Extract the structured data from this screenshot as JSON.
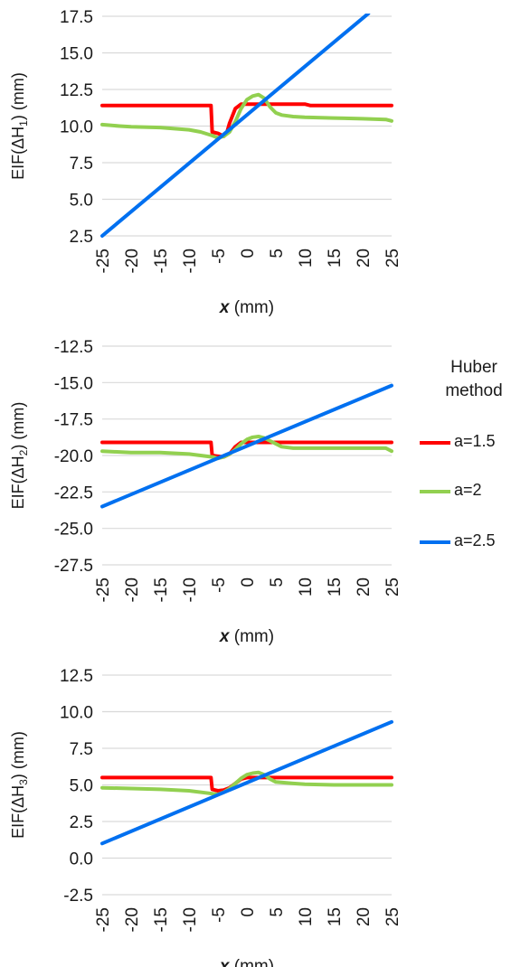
{
  "chart_data": [
    {
      "type": "line",
      "ylabel_prefix": "EIF(ΔH",
      "ylabel_subscript": "1",
      "ylabel_suffix": ") (mm)",
      "xlabel_var": "x",
      "xlabel_unit": " (mm)",
      "xlim": [
        -25,
        25
      ],
      "ylim": [
        2.5,
        17.5
      ],
      "xticks": [
        "-25",
        "-20",
        "-15",
        "-10",
        "-5",
        "0",
        "5",
        "10",
        "15",
        "20",
        "25"
      ],
      "yticks": [
        "2.5",
        "5.0",
        "7.5",
        "10.0",
        "12.5",
        "15.0",
        "17.5"
      ],
      "grid": true,
      "series": [
        {
          "name": "a=1.5",
          "x": [
            -25,
            -6.2,
            -6,
            -5,
            -4,
            -3.5,
            -3,
            -2,
            -1,
            0,
            1,
            2,
            5,
            10,
            11,
            25
          ],
          "y": [
            11.4,
            11.4,
            9.6,
            9.5,
            9.3,
            9.5,
            10.2,
            11.2,
            11.5,
            11.5,
            11.5,
            11.5,
            11.5,
            11.5,
            11.4,
            11.4
          ]
        },
        {
          "name": "a=2",
          "x": [
            -25,
            -22,
            -20,
            -15,
            -10,
            -8,
            -6,
            -5,
            -4,
            -3,
            -2,
            -1,
            0,
            1,
            2,
            3,
            4,
            5,
            6,
            8,
            10,
            15,
            20,
            24,
            25
          ],
          "y": [
            10.1,
            10.0,
            9.95,
            9.9,
            9.75,
            9.6,
            9.35,
            9.2,
            9.3,
            9.6,
            10.3,
            11.2,
            11.8,
            12.05,
            12.15,
            11.9,
            11.3,
            10.9,
            10.75,
            10.65,
            10.6,
            10.55,
            10.5,
            10.45,
            10.35
          ]
        },
        {
          "name": "a=2.5",
          "x": [
            -25,
            21
          ],
          "y": [
            2.5,
            17.7
          ]
        }
      ]
    },
    {
      "type": "line",
      "ylabel_prefix": "EIF(ΔH",
      "ylabel_subscript": "2",
      "ylabel_suffix": ") (mm)",
      "xlabel_var": "x",
      "xlabel_unit": " (mm)",
      "xlim": [
        -25,
        25
      ],
      "ylim": [
        -27.5,
        -12.5
      ],
      "xticks": [
        "-25",
        "-20",
        "-15",
        "-10",
        "-5",
        "0",
        "5",
        "10",
        "15",
        "20",
        "25"
      ],
      "yticks": [
        "-12.5",
        "-15.0",
        "-17.5",
        "-20.0",
        "-22.5",
        "-25.0",
        "-27.5"
      ],
      "grid": true,
      "series": [
        {
          "name": "a=1.5",
          "x": [
            -25,
            -6.2,
            -6,
            -5,
            -4,
            -3,
            -2,
            -1,
            0,
            5,
            25
          ],
          "y": [
            -19.1,
            -19.1,
            -20.0,
            -20.05,
            -20.1,
            -19.9,
            -19.4,
            -19.1,
            -19.1,
            -19.1,
            -19.1
          ]
        },
        {
          "name": "a=2",
          "x": [
            -25,
            -20,
            -15,
            -10,
            -8,
            -6,
            -5,
            -4,
            -3,
            -2,
            -1,
            0,
            1,
            2,
            3,
            4,
            5,
            6,
            8,
            10,
            20,
            24,
            25
          ],
          "y": [
            -19.7,
            -19.8,
            -19.8,
            -19.9,
            -20.0,
            -20.1,
            -20.2,
            -20.1,
            -19.9,
            -19.6,
            -19.2,
            -18.9,
            -18.75,
            -18.7,
            -18.8,
            -19.0,
            -19.2,
            -19.4,
            -19.5,
            -19.5,
            -19.5,
            -19.5,
            -19.7
          ]
        },
        {
          "name": "a=2.5",
          "x": [
            -25,
            25
          ],
          "y": [
            -23.5,
            -15.2
          ]
        }
      ]
    },
    {
      "type": "line",
      "ylabel_prefix": "EIF(ΔH",
      "ylabel_subscript": "3",
      "ylabel_suffix": ") (mm)",
      "xlabel_var": "x",
      "xlabel_unit": " (mm)",
      "xlim": [
        -25,
        25
      ],
      "ylim": [
        -2.5,
        12.5
      ],
      "xticks": [
        "-25",
        "-20",
        "-15",
        "-10",
        "-5",
        "0",
        "5",
        "10",
        "15",
        "20",
        "25"
      ],
      "yticks": [
        "12.5",
        "10.0",
        "7.5",
        "5.0",
        "2.5",
        "0.0",
        "-2.5"
      ],
      "grid": true,
      "series": [
        {
          "name": "a=1.5",
          "x": [
            -25,
            -6.2,
            -6,
            -5,
            -4,
            -3,
            -2,
            -1,
            0,
            5,
            25
          ],
          "y": [
            5.5,
            5.5,
            4.7,
            4.6,
            4.65,
            4.8,
            5.1,
            5.4,
            5.5,
            5.5,
            5.5
          ]
        },
        {
          "name": "a=2",
          "x": [
            -25,
            -20,
            -15,
            -10,
            -6,
            -5,
            -4,
            -3,
            -2,
            -1,
            0,
            1,
            2,
            3,
            4,
            5,
            8,
            10,
            15,
            20,
            25
          ],
          "y": [
            4.8,
            4.75,
            4.7,
            4.6,
            4.4,
            4.35,
            4.5,
            4.75,
            5.1,
            5.45,
            5.7,
            5.8,
            5.85,
            5.7,
            5.4,
            5.2,
            5.1,
            5.05,
            5.0,
            5.0,
            5.0
          ]
        },
        {
          "name": "a=2.5",
          "x": [
            -25,
            25
          ],
          "y": [
            1.0,
            9.3
          ]
        }
      ]
    }
  ],
  "legend": {
    "title_line1": "Huber",
    "title_line2": "method",
    "items": [
      {
        "label": "a=1.5",
        "color": "#ff0000"
      },
      {
        "label": "a=2",
        "color": "#92d050"
      },
      {
        "label": "a=2.5",
        "color": "#0070f0"
      }
    ]
  },
  "colors": {
    "grid": "#d9d9d9",
    "text": "#1a1a1a"
  }
}
